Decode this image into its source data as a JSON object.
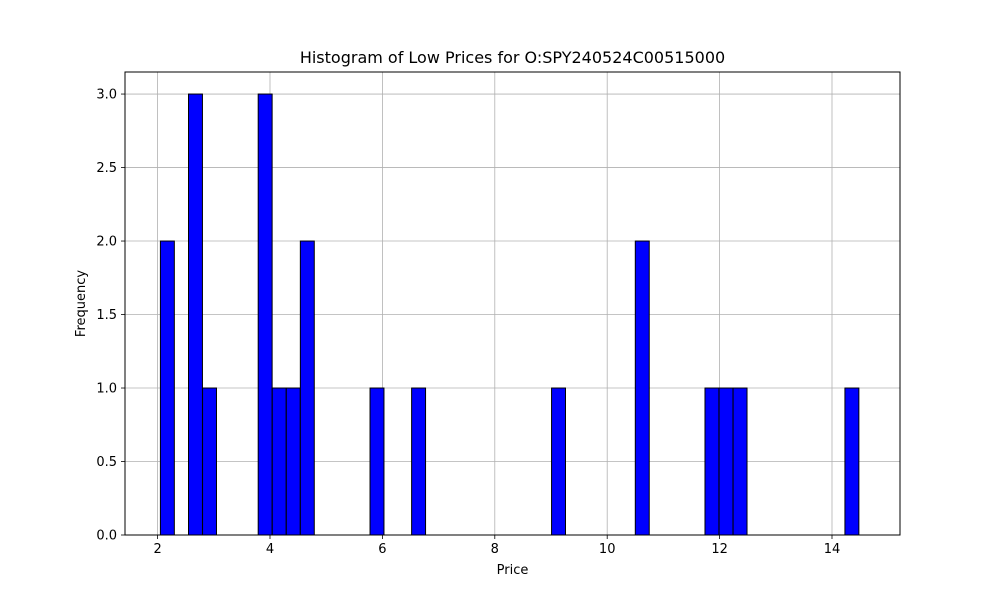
{
  "chart_data": {
    "type": "bar",
    "title": "Histogram of Low Prices for O:SPY240524C00515000",
    "xlabel": "Price",
    "ylabel": "Frequency",
    "xlim": [
      1.42,
      15.21
    ],
    "ylim": [
      0,
      3.15
    ],
    "grid": true,
    "legend": "none",
    "bar_color": "#0000ff",
    "edge_color": "#000000",
    "grid_color": "#b0b0b0",
    "bin_width": 0.248,
    "x_ticks": [
      2,
      4,
      6,
      8,
      10,
      12,
      14
    ],
    "x_tick_labels": [
      "2",
      "4",
      "6",
      "8",
      "10",
      "12",
      "14"
    ],
    "y_ticks": [
      0,
      0.5,
      1,
      1.5,
      2,
      2.5,
      3
    ],
    "y_tick_labels": [
      "0.0",
      "0.5",
      "1.0",
      "1.5",
      "2.0",
      "2.5",
      "3.0"
    ],
    "bins": [
      {
        "start": 2.05,
        "count": 2
      },
      {
        "start": 2.55,
        "count": 3
      },
      {
        "start": 2.8,
        "count": 1
      },
      {
        "start": 3.79,
        "count": 3
      },
      {
        "start": 4.04,
        "count": 1
      },
      {
        "start": 4.29,
        "count": 1
      },
      {
        "start": 4.54,
        "count": 2
      },
      {
        "start": 5.78,
        "count": 1
      },
      {
        "start": 6.52,
        "count": 1
      },
      {
        "start": 9.01,
        "count": 1
      },
      {
        "start": 10.5,
        "count": 2
      },
      {
        "start": 11.74,
        "count": 1
      },
      {
        "start": 11.99,
        "count": 1
      },
      {
        "start": 12.24,
        "count": 1
      },
      {
        "start": 14.23,
        "count": 1
      }
    ]
  }
}
